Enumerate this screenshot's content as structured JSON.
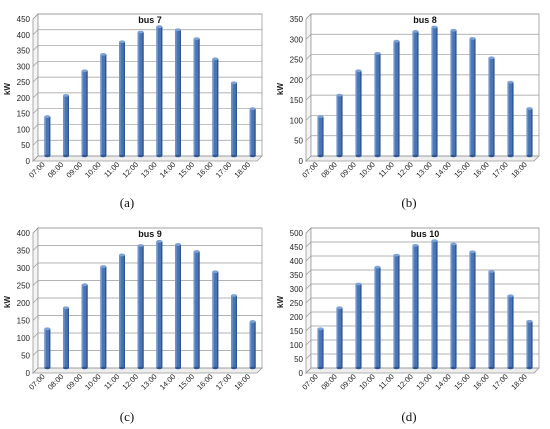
{
  "chart_data": [
    {
      "type": "bar",
      "title": "bus 7",
      "ylabel": "kW",
      "ylim": [
        0,
        450
      ],
      "ytick_step": 50,
      "ytick_labels": [
        "0",
        "50",
        "100",
        "150",
        "200",
        "250",
        "300",
        "350",
        "400",
        "450"
      ],
      "categories": [
        "07:00",
        "08:00",
        "09:00",
        "10:00",
        "11:00",
        "12:00",
        "13:00",
        "14:00",
        "15:00",
        "16:00",
        "17:00",
        "18:00"
      ],
      "values": [
        125,
        192,
        270,
        322,
        362,
        393,
        410,
        400,
        372,
        308,
        232,
        150
      ],
      "grid": true,
      "bar_color": "#4a74b4",
      "caption": "(a)"
    },
    {
      "type": "bar",
      "title": "bus 8",
      "ylabel": "kW",
      "ylim": [
        0,
        350
      ],
      "ytick_step": 50,
      "ytick_labels": [
        "0",
        "50",
        "100",
        "150",
        "200",
        "250",
        "300",
        "350"
      ],
      "categories": [
        "07:00",
        "08:00",
        "09:00",
        "10:00",
        "11:00",
        "12:00",
        "13:00",
        "14:00",
        "15:00",
        "16:00",
        "17:00",
        "18:00"
      ],
      "values": [
        97,
        150,
        210,
        253,
        283,
        307,
        318,
        310,
        290,
        242,
        182,
        117
      ],
      "grid": true,
      "bar_color": "#4a74b4",
      "caption": "(b)"
    },
    {
      "type": "bar",
      "title": "bus 9",
      "ylabel": "kW",
      "ylim": [
        0,
        400
      ],
      "ytick_step": 50,
      "ytick_labels": [
        "0",
        "50",
        "100",
        "150",
        "200",
        "250",
        "300",
        "350",
        "400"
      ],
      "categories": [
        "07:00",
        "08:00",
        "09:00",
        "10:00",
        "11:00",
        "12:00",
        "13:00",
        "14:00",
        "15:00",
        "16:00",
        "17:00",
        "18:00"
      ],
      "values": [
        112,
        172,
        238,
        290,
        323,
        350,
        362,
        353,
        333,
        275,
        207,
        133
      ],
      "grid": true,
      "bar_color": "#4a74b4",
      "caption": "(c)"
    },
    {
      "type": "bar",
      "title": "bus 10",
      "ylabel": "kW",
      "ylim": [
        0,
        500
      ],
      "ytick_step": 50,
      "ytick_labels": [
        "0",
        "50",
        "100",
        "150",
        "200",
        "250",
        "300",
        "350",
        "400",
        "450",
        "500"
      ],
      "categories": [
        "07:00",
        "08:00",
        "09:00",
        "10:00",
        "11:00",
        "12:00",
        "13:00",
        "14:00",
        "15:00",
        "16:00",
        "17:00",
        "18:00"
      ],
      "values": [
        140,
        215,
        300,
        360,
        403,
        438,
        455,
        443,
        415,
        345,
        258,
        167
      ],
      "grid": true,
      "bar_color": "#4a74b4",
      "caption": "(d)"
    }
  ]
}
